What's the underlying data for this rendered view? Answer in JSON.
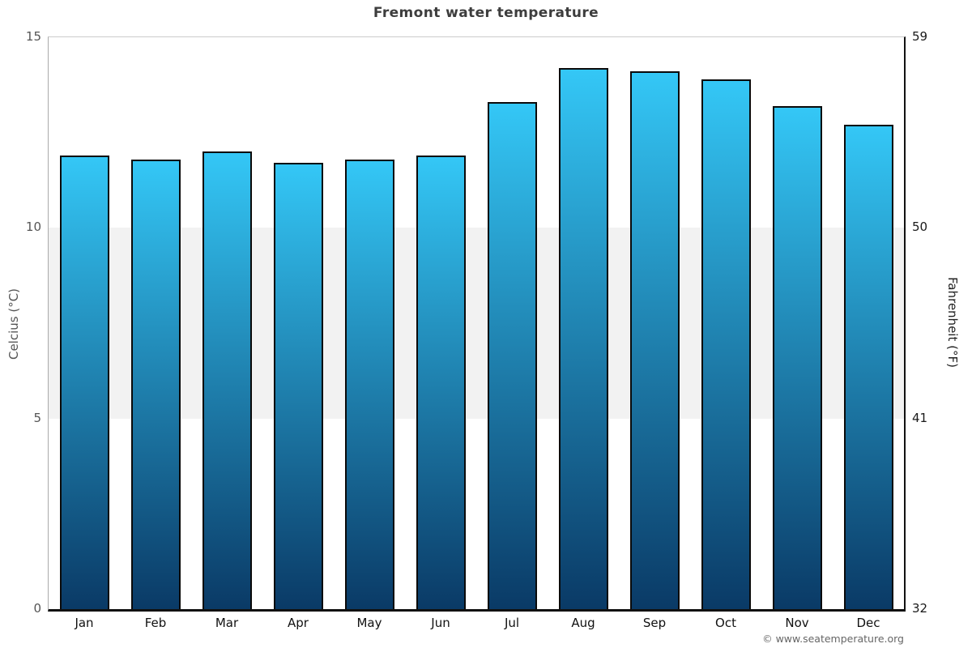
{
  "page": {
    "background": "#ffffff"
  },
  "footer": {
    "credit": "© www.seatemperature.org"
  },
  "chart_data": {
    "type": "bar",
    "title": "Fremont water temperature",
    "categories": [
      "Jan",
      "Feb",
      "Mar",
      "Apr",
      "May",
      "Jun",
      "Jul",
      "Aug",
      "Sep",
      "Oct",
      "Nov",
      "Dec"
    ],
    "values": [
      11.9,
      11.8,
      12.0,
      11.7,
      11.8,
      11.9,
      13.3,
      14.2,
      14.1,
      13.9,
      13.2,
      12.7
    ],
    "unit": "°C",
    "ylabel_left": "Celcius (°C)",
    "ylabel_right": "Fahrenheit (°F)",
    "yticks_left": [
      15,
      10,
      5,
      0
    ],
    "yticks_right": [
      59,
      50,
      41,
      32
    ],
    "ylim": [
      0,
      15
    ],
    "legend": "none",
    "grid": "shaded band between 5 and 10 °C only",
    "band": {
      "from": 5,
      "to": 10,
      "color": "#f2f2f2"
    },
    "colors": {
      "bar_gradient_top": "#34c7f6",
      "bar_gradient_bottom": "#0a3a66",
      "bar_border": "#0a0a0a",
      "title_text": "#3d3d3d",
      "left_axis_line": "#aaaaaa",
      "right_axis_line": "#111111",
      "bottom_axis_line": "#111111",
      "top_gridline": "#cccccc",
      "left_tick_text": "#555555",
      "right_tick_text": "#1a1a1a",
      "credit_text": "#666666"
    }
  }
}
